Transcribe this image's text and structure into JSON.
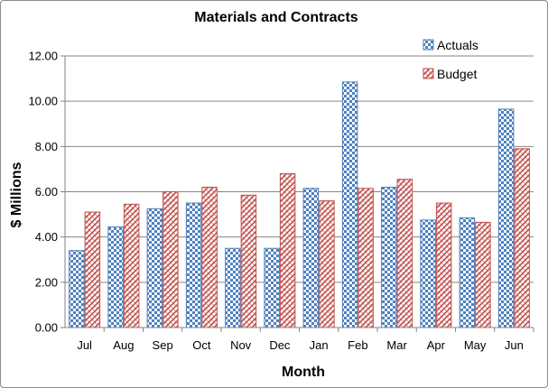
{
  "chart_data": {
    "type": "bar",
    "title": "Materials and Contracts",
    "xlabel": "Month",
    "ylabel": "$ Millions",
    "categories": [
      "Jul",
      "Aug",
      "Sep",
      "Oct",
      "Nov",
      "Dec",
      "Jan",
      "Feb",
      "Mar",
      "Apr",
      "May",
      "Jun"
    ],
    "series": [
      {
        "name": "Actuals",
        "color": "#4f81bd",
        "values": [
          3.4,
          4.45,
          5.25,
          5.5,
          3.5,
          3.5,
          6.15,
          10.85,
          6.2,
          4.75,
          4.85,
          9.65
        ]
      },
      {
        "name": "Budget",
        "color": "#c0504d",
        "values": [
          5.1,
          5.45,
          6.0,
          6.2,
          5.85,
          6.8,
          5.6,
          6.15,
          6.55,
          5.5,
          4.65,
          7.9
        ]
      }
    ],
    "ylim": [
      0,
      12
    ],
    "yticks": [
      "0.00",
      "2.00",
      "4.00",
      "6.00",
      "8.00",
      "10.00",
      "12.00"
    ],
    "grid": true,
    "legend_position": "top-right"
  }
}
